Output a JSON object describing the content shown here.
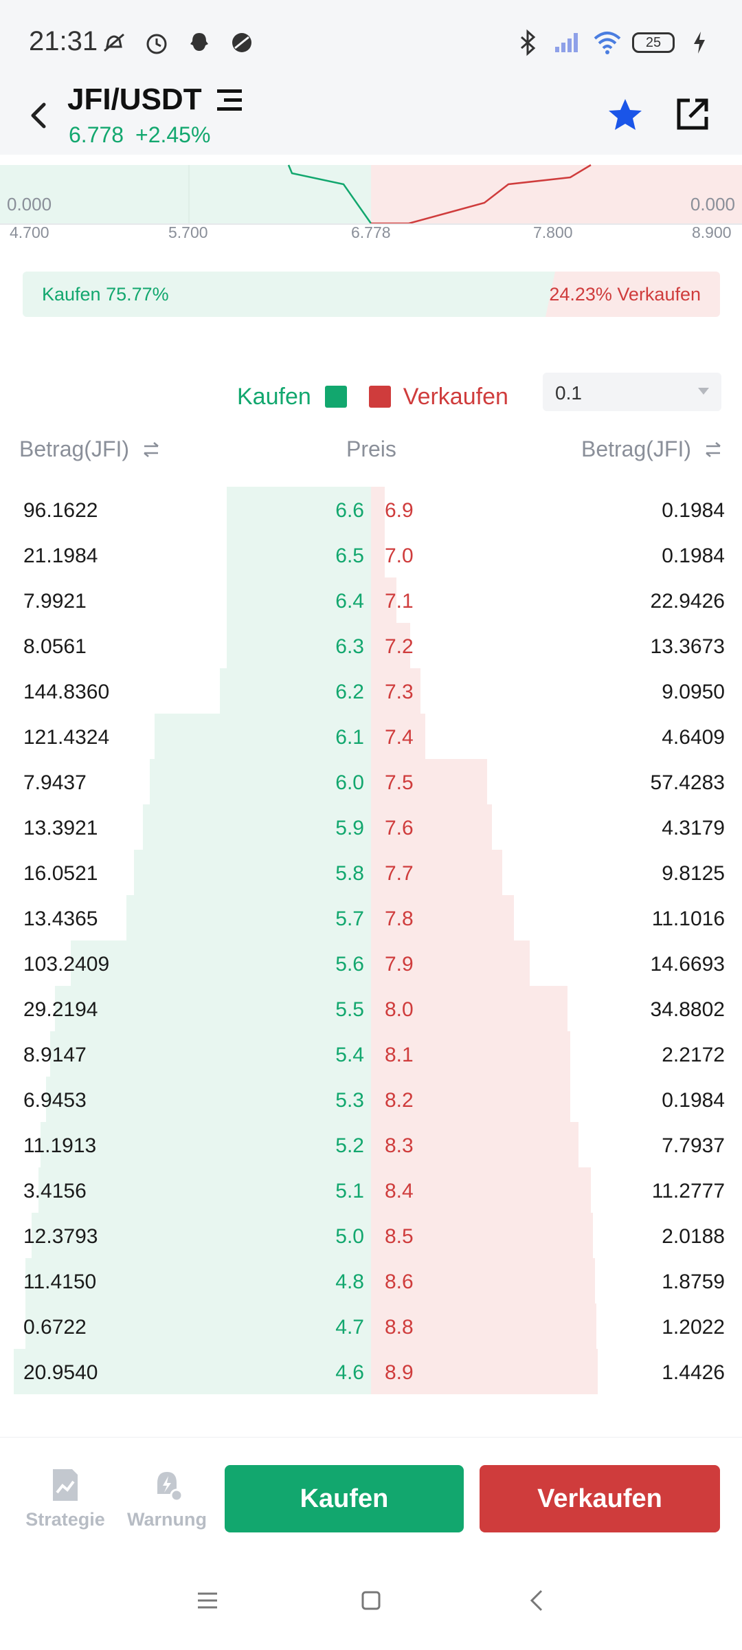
{
  "status_bar": {
    "time": "21:31",
    "battery": "25",
    "icons_left": [
      "mute-icon",
      "alarm-icon",
      "snapchat-icon",
      "vpn-icon"
    ],
    "icons_right": [
      "bluetooth-icon",
      "signal-icon",
      "wifi-icon",
      "battery-icon",
      "charging-icon"
    ]
  },
  "header": {
    "pair": "JFI/USDT",
    "price": "6.778",
    "change": "+2.45%"
  },
  "depth_chart": {
    "x_ticks": [
      "4.700",
      "5.700",
      "6.778",
      "7.800",
      "8.900"
    ],
    "left_zero": "0.000",
    "right_zero": "0.000"
  },
  "ratio": {
    "buy_label": "Kaufen 75.77%",
    "sell_label": "24.23% Verkaufen",
    "buy_fraction": 0.7577
  },
  "legend": {
    "buy": "Kaufen",
    "sell": "Verkaufen",
    "buy_color": "#12a76e",
    "sell_color": "#cf3c3c"
  },
  "precision": {
    "value": "0.1"
  },
  "columns": {
    "left": "Betrag(JFI)",
    "mid": "Preis",
    "right": "Betrag(JFI)"
  },
  "orderbook": {
    "rows": [
      {
        "bid_amount": "96.1622",
        "bid_price": "6.6",
        "ask_price": "6.9",
        "ask_amount": "0.1984"
      },
      {
        "bid_amount": "21.1984",
        "bid_price": "6.5",
        "ask_price": "7.0",
        "ask_amount": "0.1984"
      },
      {
        "bid_amount": "7.9921",
        "bid_price": "6.4",
        "ask_price": "7.1",
        "ask_amount": "22.9426"
      },
      {
        "bid_amount": "8.0561",
        "bid_price": "6.3",
        "ask_price": "7.2",
        "ask_amount": "13.3673"
      },
      {
        "bid_amount": "144.8360",
        "bid_price": "6.2",
        "ask_price": "7.3",
        "ask_amount": "9.0950"
      },
      {
        "bid_amount": "121.4324",
        "bid_price": "6.1",
        "ask_price": "7.4",
        "ask_amount": "4.6409"
      },
      {
        "bid_amount": "7.9437",
        "bid_price": "6.0",
        "ask_price": "7.5",
        "ask_amount": "57.4283"
      },
      {
        "bid_amount": "13.3921",
        "bid_price": "5.9",
        "ask_price": "7.6",
        "ask_amount": "4.3179"
      },
      {
        "bid_amount": "16.0521",
        "bid_price": "5.8",
        "ask_price": "7.7",
        "ask_amount": "9.8125"
      },
      {
        "bid_amount": "13.4365",
        "bid_price": "5.7",
        "ask_price": "7.8",
        "ask_amount": "11.1016"
      },
      {
        "bid_amount": "103.2409",
        "bid_price": "5.6",
        "ask_price": "7.9",
        "ask_amount": "14.6693"
      },
      {
        "bid_amount": "29.2194",
        "bid_price": "5.5",
        "ask_price": "8.0",
        "ask_amount": "34.8802"
      },
      {
        "bid_amount": "8.9147",
        "bid_price": "5.4",
        "ask_price": "8.1",
        "ask_amount": "2.2172"
      },
      {
        "bid_amount": "6.9453",
        "bid_price": "5.3",
        "ask_price": "8.2",
        "ask_amount": "0.1984"
      },
      {
        "bid_amount": "11.1913",
        "bid_price": "5.2",
        "ask_price": "8.3",
        "ask_amount": "7.7937"
      },
      {
        "bid_amount": "3.4156",
        "bid_price": "5.1",
        "ask_price": "8.4",
        "ask_amount": "11.2777"
      },
      {
        "bid_amount": "12.3793",
        "bid_price": "5.0",
        "ask_price": "8.5",
        "ask_amount": "2.0188"
      },
      {
        "bid_amount": "11.4150",
        "bid_price": "4.8",
        "ask_price": "8.6",
        "ask_amount": "1.8759"
      },
      {
        "bid_amount": "0.6722",
        "bid_price": "4.7",
        "ask_price": "8.8",
        "ask_amount": "1.2022"
      },
      {
        "bid_amount": "20.9540",
        "bid_price": "4.6",
        "ask_price": "8.9",
        "ask_amount": "1.4426"
      }
    ]
  },
  "bottom": {
    "strategy": "Strategie",
    "alert": "Warnung",
    "buy": "Kaufen",
    "sell": "Verkaufen"
  },
  "nav": [
    "menu-icon",
    "home-icon",
    "back-icon"
  ]
}
